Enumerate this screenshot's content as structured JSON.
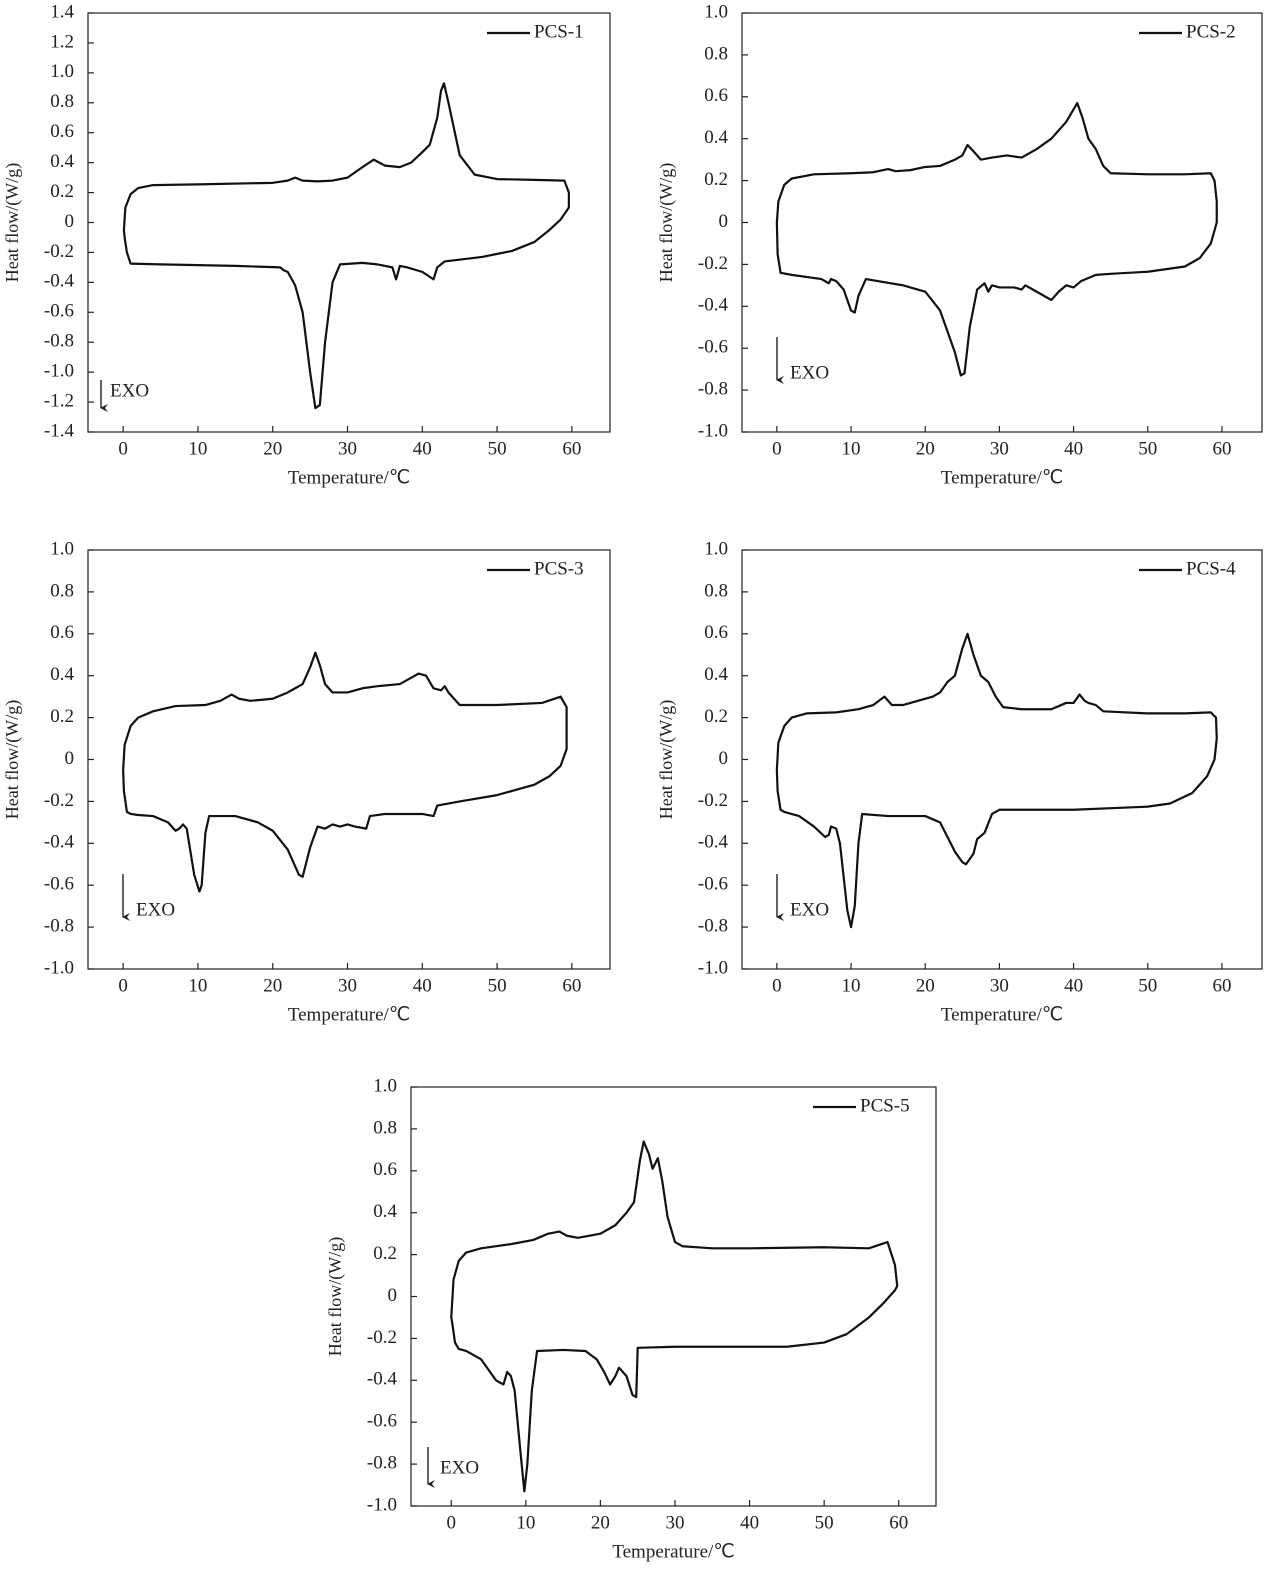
{
  "chart_data": [
    {
      "type": "line",
      "x_label": "Temperature/℃",
      "y_label": "Heat flow/(W/g)",
      "annotation": "EXO",
      "legend": "upper right",
      "xlim": [
        -4.7,
        65.1
      ],
      "ylim": [
        -1.4,
        1.4
      ],
      "xticks": [
        0,
        10,
        20,
        30,
        40,
        50,
        60
      ],
      "yticks": [
        1.4,
        1.2,
        {
          "value": 1,
          "label": "1.0"
        },
        0.8,
        0.6,
        0.4,
        0.2,
        0,
        -0.2,
        -0.4,
        -0.6,
        -0.8,
        {
          "value": -1,
          "label": "-1.0"
        },
        -1.2,
        -1.4
      ],
      "x": [
        0.1,
        0.3,
        1,
        2,
        4,
        10,
        20,
        22,
        23,
        24,
        26,
        28,
        30,
        32,
        33.5,
        35,
        37,
        38.5,
        40,
        41,
        42,
        42.5,
        42.9,
        43.5,
        45,
        47,
        50,
        55,
        59,
        59.6,
        59.6,
        58.5,
        57,
        55,
        52,
        48,
        43,
        42,
        41.5,
        40,
        38,
        37,
        36.5,
        36,
        34,
        32,
        29,
        28,
        27,
        26.3,
        25.7,
        25,
        24,
        23,
        22,
        21.5,
        21,
        15,
        5,
        1,
        0.5,
        0.2,
        0.1
      ],
      "series": [
        {
          "name": "PCS-1",
          "color": "#111111",
          "values": [
            -0.05,
            0.1,
            0.19,
            0.23,
            0.25,
            0.255,
            0.265,
            0.28,
            0.3,
            0.28,
            0.275,
            0.28,
            0.3,
            0.37,
            0.42,
            0.38,
            0.37,
            0.4,
            0.47,
            0.52,
            0.7,
            0.88,
            0.93,
            0.8,
            0.45,
            0.32,
            0.29,
            0.285,
            0.28,
            0.2,
            0.1,
            0.02,
            -0.05,
            -0.13,
            -0.19,
            -0.23,
            -0.26,
            -0.3,
            -0.38,
            -0.33,
            -0.3,
            -0.29,
            -0.38,
            -0.3,
            -0.28,
            -0.27,
            -0.28,
            -0.4,
            -0.8,
            -1.22,
            -1.24,
            -1.0,
            -0.6,
            -0.42,
            -0.33,
            -0.32,
            -0.3,
            -0.29,
            -0.28,
            -0.275,
            -0.2,
            -0.1,
            -0.05
          ]
        }
      ]
    },
    {
      "type": "line",
      "x_label": "Temperature/℃",
      "y_label": "Heat flow/(W/g)",
      "annotation": "EXO",
      "legend": "upper right",
      "xlim": [
        -4.7,
        65.4
      ],
      "ylim": [
        -1,
        1
      ],
      "xticks": [
        0,
        10,
        20,
        30,
        40,
        50,
        60
      ],
      "yticks": [
        {
          "value": 1,
          "label": "1.0"
        },
        0.8,
        0.6,
        0.4,
        0.2,
        0,
        -0.2,
        -0.4,
        -0.6,
        -0.8,
        {
          "value": -1,
          "label": "-1.0"
        }
      ],
      "x": [
        0,
        0.2,
        1,
        2,
        5,
        10,
        13,
        15,
        16,
        18,
        20,
        22,
        24,
        25,
        25.7,
        26.5,
        27.5,
        29,
        31,
        33,
        35,
        37,
        39,
        40,
        40.5,
        41.2,
        42,
        43,
        44,
        45,
        50,
        55,
        58.5,
        59,
        59.3,
        59.3,
        58.5,
        57,
        55,
        50,
        45,
        43,
        41,
        40,
        39,
        38,
        37,
        35,
        33.5,
        33,
        32,
        30,
        29,
        28.5,
        28,
        27,
        26,
        25.3,
        24.8,
        24,
        22,
        20,
        17,
        12,
        11,
        10.5,
        10,
        9,
        8,
        7.3,
        7,
        6,
        2,
        0.5,
        0.1,
        0
      ],
      "series": [
        {
          "name": "PCS-2",
          "color": "#111111",
          "values": [
            0,
            0.1,
            0.18,
            0.21,
            0.23,
            0.235,
            0.24,
            0.255,
            0.245,
            0.25,
            0.265,
            0.27,
            0.3,
            0.32,
            0.37,
            0.34,
            0.3,
            0.31,
            0.32,
            0.31,
            0.35,
            0.4,
            0.48,
            0.54,
            0.57,
            0.5,
            0.4,
            0.35,
            0.27,
            0.235,
            0.23,
            0.23,
            0.235,
            0.2,
            0.1,
            0,
            -0.1,
            -0.17,
            -0.21,
            -0.235,
            -0.245,
            -0.25,
            -0.28,
            -0.31,
            -0.3,
            -0.33,
            -0.37,
            -0.33,
            -0.3,
            -0.32,
            -0.31,
            -0.31,
            -0.3,
            -0.33,
            -0.29,
            -0.32,
            -0.5,
            -0.72,
            -0.73,
            -0.62,
            -0.42,
            -0.33,
            -0.3,
            -0.27,
            -0.35,
            -0.43,
            -0.42,
            -0.32,
            -0.28,
            -0.27,
            -0.29,
            -0.27,
            -0.25,
            -0.24,
            -0.15,
            0
          ]
        }
      ]
    },
    {
      "type": "line",
      "x_label": "Temperature/℃",
      "y_label": "Heat flow/(W/g)",
      "annotation": "EXO",
      "legend": "upper right",
      "xlim": [
        -4.7,
        65.1
      ],
      "ylim": [
        -1,
        1
      ],
      "xticks": [
        0,
        10,
        20,
        30,
        40,
        50,
        60
      ],
      "yticks": [
        {
          "value": 1,
          "label": "1.0"
        },
        0.8,
        0.6,
        0.4,
        0.2,
        0,
        -0.2,
        -0.4,
        -0.6,
        -0.8,
        {
          "value": -1,
          "label": "-1.0"
        }
      ],
      "x": [
        0,
        0.2,
        1,
        2,
        4,
        7,
        11,
        13,
        14.5,
        15.5,
        17,
        20,
        22,
        23,
        24,
        25,
        25.7,
        26.3,
        27,
        28,
        30,
        32,
        34,
        37,
        38.5,
        39.5,
        40.5,
        41.5,
        42.5,
        43,
        43.5,
        45,
        50,
        56,
        58.5,
        59.3,
        59.3,
        58.5,
        57,
        55,
        50,
        45,
        42,
        41.5,
        40,
        35,
        33,
        32.5,
        31,
        30,
        29,
        28,
        27,
        26,
        25,
        24,
        23.5,
        22,
        20,
        18,
        15,
        11.5,
        11,
        10.5,
        10.2,
        9.5,
        8.5,
        8,
        7.5,
        7,
        6,
        4,
        2,
        1,
        0.5,
        0.1,
        0
      ],
      "series": [
        {
          "name": "PCS-3",
          "color": "#111111",
          "values": [
            -0.05,
            0.07,
            0.16,
            0.2,
            0.23,
            0.255,
            0.26,
            0.28,
            0.31,
            0.29,
            0.28,
            0.29,
            0.32,
            0.34,
            0.36,
            0.44,
            0.51,
            0.45,
            0.36,
            0.32,
            0.32,
            0.34,
            0.35,
            0.36,
            0.39,
            0.41,
            0.4,
            0.34,
            0.33,
            0.35,
            0.32,
            0.26,
            0.26,
            0.27,
            0.3,
            0.25,
            0.05,
            -0.03,
            -0.08,
            -0.12,
            -0.17,
            -0.2,
            -0.22,
            -0.27,
            -0.26,
            -0.26,
            -0.27,
            -0.33,
            -0.32,
            -0.31,
            -0.32,
            -0.31,
            -0.33,
            -0.32,
            -0.42,
            -0.56,
            -0.55,
            -0.43,
            -0.34,
            -0.3,
            -0.27,
            -0.27,
            -0.35,
            -0.6,
            -0.63,
            -0.55,
            -0.33,
            -0.31,
            -0.33,
            -0.34,
            -0.3,
            -0.27,
            -0.265,
            -0.26,
            -0.25,
            -0.15,
            -0.05
          ]
        }
      ]
    },
    {
      "type": "line",
      "x_label": "Temperature/℃",
      "y_label": "Heat flow/(W/g)",
      "annotation": "EXO",
      "legend": "upper right",
      "xlim": [
        -4.7,
        65.4
      ],
      "ylim": [
        -1,
        1
      ],
      "xticks": [
        0,
        10,
        20,
        30,
        40,
        50,
        60
      ],
      "yticks": [
        {
          "value": 1,
          "label": "1.0"
        },
        0.8,
        0.6,
        0.4,
        0.2,
        0,
        -0.2,
        -0.4,
        -0.6,
        -0.8,
        {
          "value": -1,
          "label": "-1.0"
        }
      ],
      "x": [
        0,
        0.2,
        1,
        2,
        4,
        8,
        11,
        13,
        14.5,
        15.5,
        17,
        19,
        21,
        22,
        23,
        24,
        25,
        25.7,
        26.5,
        27.5,
        28.5,
        29.5,
        30.5,
        33,
        37,
        39,
        40,
        40.8,
        41.5,
        42,
        43,
        44,
        50,
        55,
        58.5,
        59.2,
        59.3,
        59,
        58,
        56,
        53,
        50,
        40,
        30,
        29,
        28,
        27,
        26.5,
        25.5,
        25,
        24,
        23,
        22,
        20,
        15,
        11.5,
        11,
        10.5,
        10,
        9.5,
        8.5,
        8,
        7.3,
        7,
        6.5,
        5,
        3,
        1,
        0.5,
        0.1,
        0
      ],
      "series": [
        {
          "name": "PCS-4",
          "color": "#111111",
          "values": [
            -0.05,
            0.08,
            0.16,
            0.2,
            0.22,
            0.225,
            0.24,
            0.26,
            0.3,
            0.26,
            0.26,
            0.28,
            0.3,
            0.32,
            0.37,
            0.4,
            0.53,
            0.6,
            0.5,
            0.4,
            0.37,
            0.3,
            0.25,
            0.24,
            0.24,
            0.27,
            0.27,
            0.31,
            0.28,
            0.27,
            0.26,
            0.23,
            0.22,
            0.22,
            0.225,
            0.2,
            0.1,
            0,
            -0.08,
            -0.16,
            -0.21,
            -0.225,
            -0.24,
            -0.24,
            -0.26,
            -0.35,
            -0.38,
            -0.45,
            -0.5,
            -0.49,
            -0.44,
            -0.37,
            -0.3,
            -0.27,
            -0.27,
            -0.26,
            -0.4,
            -0.7,
            -0.8,
            -0.72,
            -0.4,
            -0.33,
            -0.32,
            -0.36,
            -0.37,
            -0.32,
            -0.27,
            -0.25,
            -0.24,
            -0.15,
            -0.05
          ]
        }
      ]
    },
    {
      "type": "line",
      "x_label": "Temperature/℃",
      "y_label": "Heat flow/(W/g)",
      "annotation": "EXO",
      "legend": "upper right",
      "xlim": [
        -5.4,
        65
      ],
      "ylim": [
        -1,
        1
      ],
      "xticks": [
        0,
        10,
        20,
        30,
        40,
        50,
        60
      ],
      "yticks": [
        {
          "value": 1,
          "label": "1.0"
        },
        0.8,
        0.6,
        0.4,
        0.2,
        0,
        -0.2,
        -0.4,
        -0.6,
        -0.8,
        {
          "value": -1,
          "label": "-1.0"
        }
      ],
      "x": [
        0,
        0.3,
        1,
        2,
        4,
        8,
        11,
        13,
        14.5,
        15.5,
        17,
        20,
        22,
        23.5,
        24.5,
        25.3,
        25.8,
        26.5,
        27,
        27.7,
        28.3,
        29,
        30,
        31,
        35,
        40,
        50,
        56,
        58.5,
        59.5,
        59.8,
        59.5,
        58,
        56,
        53,
        50,
        45,
        40,
        35,
        30,
        25,
        24.8,
        24.3,
        23.5,
        22.5,
        22,
        21.3,
        20.5,
        19.5,
        18,
        15,
        11.5,
        10.8,
        10.2,
        9.8,
        9.3,
        8.5,
        8,
        7.5,
        7,
        6,
        4,
        2,
        1,
        0.5,
        0.1,
        0
      ],
      "series": [
        {
          "name": "PCS-5",
          "color": "#111111",
          "values": [
            -0.1,
            0.08,
            0.17,
            0.21,
            0.23,
            0.25,
            0.27,
            0.3,
            0.31,
            0.29,
            0.28,
            0.3,
            0.34,
            0.4,
            0.45,
            0.65,
            0.74,
            0.68,
            0.61,
            0.66,
            0.55,
            0.38,
            0.26,
            0.24,
            0.23,
            0.23,
            0.235,
            0.23,
            0.26,
            0.15,
            0.05,
            0.03,
            -0.03,
            -0.1,
            -0.18,
            -0.22,
            -0.24,
            -0.24,
            -0.24,
            -0.24,
            -0.245,
            -0.48,
            -0.47,
            -0.38,
            -0.34,
            -0.38,
            -0.42,
            -0.36,
            -0.3,
            -0.26,
            -0.255,
            -0.26,
            -0.45,
            -0.8,
            -0.93,
            -0.75,
            -0.45,
            -0.38,
            -0.36,
            -0.42,
            -0.4,
            -0.3,
            -0.26,
            -0.25,
            -0.22,
            -0.12,
            -0.1
          ]
        }
      ]
    }
  ]
}
